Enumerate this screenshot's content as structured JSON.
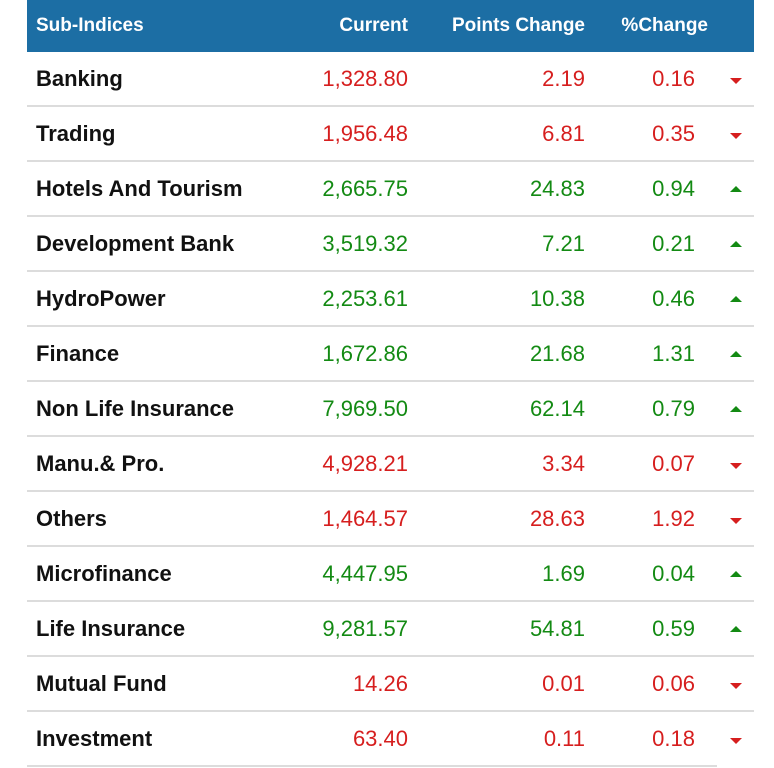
{
  "header": {
    "name": "Sub-Indices",
    "current": "Current",
    "points": "Points Change",
    "pct": "%Change"
  },
  "colors": {
    "header_bg": "#1c6ea4",
    "up": "#138a13",
    "down": "#d61e1e"
  },
  "rows": [
    {
      "name": "Banking",
      "current": "1,328.80",
      "points": "2.19",
      "pct": "0.16",
      "direction": "down"
    },
    {
      "name": "Trading",
      "current": "1,956.48",
      "points": "6.81",
      "pct": "0.35",
      "direction": "down"
    },
    {
      "name": "Hotels And Tourism",
      "current": "2,665.75",
      "points": "24.83",
      "pct": "0.94",
      "direction": "up"
    },
    {
      "name": "Development Bank",
      "current": "3,519.32",
      "points": "7.21",
      "pct": "0.21",
      "direction": "up"
    },
    {
      "name": "HydroPower",
      "current": "2,253.61",
      "points": "10.38",
      "pct": "0.46",
      "direction": "up"
    },
    {
      "name": "Finance",
      "current": "1,672.86",
      "points": "21.68",
      "pct": "1.31",
      "direction": "up"
    },
    {
      "name": "Non Life Insurance",
      "current": "7,969.50",
      "points": "62.14",
      "pct": "0.79",
      "direction": "up"
    },
    {
      "name": "Manu.& Pro.",
      "current": "4,928.21",
      "points": "3.34",
      "pct": "0.07",
      "direction": "down"
    },
    {
      "name": "Others",
      "current": "1,464.57",
      "points": "28.63",
      "pct": "1.92",
      "direction": "down"
    },
    {
      "name": "Microfinance",
      "current": "4,447.95",
      "points": "1.69",
      "pct": "0.04",
      "direction": "up"
    },
    {
      "name": "Life Insurance",
      "current": "9,281.57",
      "points": "54.81",
      "pct": "0.59",
      "direction": "up"
    },
    {
      "name": "Mutual Fund",
      "current": "14.26",
      "points": "0.01",
      "pct": "0.06",
      "direction": "down"
    },
    {
      "name": "Investment",
      "current": "63.40",
      "points": "0.11",
      "pct": "0.18",
      "direction": "down"
    }
  ]
}
